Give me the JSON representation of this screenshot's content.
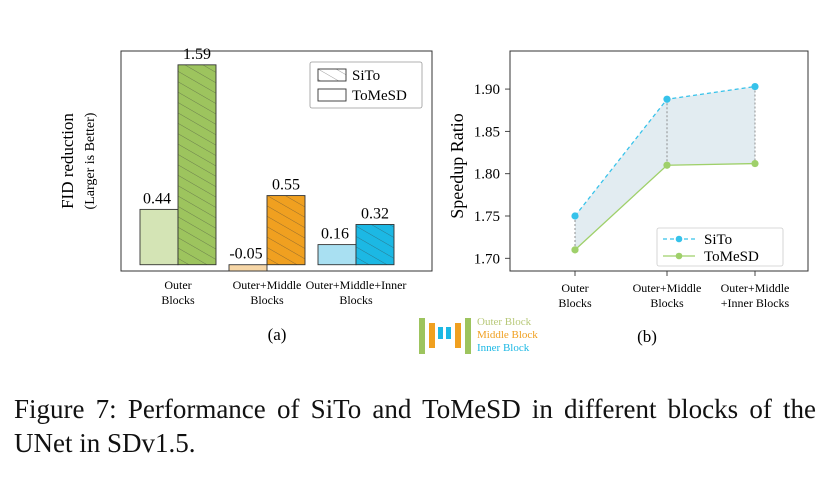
{
  "chart_data": [
    {
      "type": "bar",
      "panel_label": "(a)",
      "ylabel": "FID reduction",
      "ylabel_sub": "(Larger is Better)",
      "categories": [
        [
          "Outer",
          "Blocks"
        ],
        [
          "Outer+Middle",
          "Blocks"
        ],
        [
          "Outer+Middle+Inner",
          "Blocks"
        ]
      ],
      "series": [
        {
          "name": "ToMeSD",
          "values": [
            0.44,
            -0.05,
            0.16
          ],
          "value_labels": [
            "0.44",
            "-0.05",
            "0.16"
          ]
        },
        {
          "name": "SiTo",
          "values": [
            1.59,
            0.55,
            0.32
          ],
          "value_labels": [
            "1.59",
            "0.55",
            "0.32"
          ]
        }
      ],
      "legend": {
        "position": "top-right",
        "entries": [
          "SiTo",
          "ToMeSD"
        ]
      },
      "ylim": [
        -0.05,
        1.7
      ]
    },
    {
      "type": "line",
      "panel_label": "(b)",
      "ylabel": "Speedup Ratio",
      "categories": [
        [
          "Outer",
          "Blocks"
        ],
        [
          "Outer+Middle",
          "Blocks"
        ],
        [
          "Outer+Middle",
          "+Inner Blocks"
        ]
      ],
      "series": [
        {
          "name": "SiTo",
          "values": [
            1.75,
            1.888,
            1.903
          ],
          "style": "dashed"
        },
        {
          "name": "ToMeSD",
          "values": [
            1.71,
            1.81,
            1.812
          ],
          "style": "solid"
        }
      ],
      "yticks": [
        "1.70",
        "1.75",
        "1.80",
        "1.85",
        "1.90"
      ],
      "ylim": [
        1.685,
        1.945
      ],
      "legend": {
        "position": "bottom-right",
        "entries": [
          "SiTo",
          "ToMeSD"
        ]
      }
    }
  ],
  "block_legend": {
    "items": [
      "Outer Block",
      "Middle Block",
      "Inner Block"
    ]
  },
  "colors": {
    "outer": "#9dc45e",
    "outer_light": "#d4e4b5",
    "middle": "#f0a020",
    "middle_light": "#f6d6a6",
    "inner": "#1cb8e4",
    "inner_light": "#a9e0f2",
    "sito_line": "#36c2ea",
    "tomesd_line": "#9fd06a",
    "fill": "#dde9ee",
    "text": "#111111"
  },
  "caption": "Figure 7: Performance of SiTo and ToMeSD in different blocks of the UNet in SDv1.5."
}
